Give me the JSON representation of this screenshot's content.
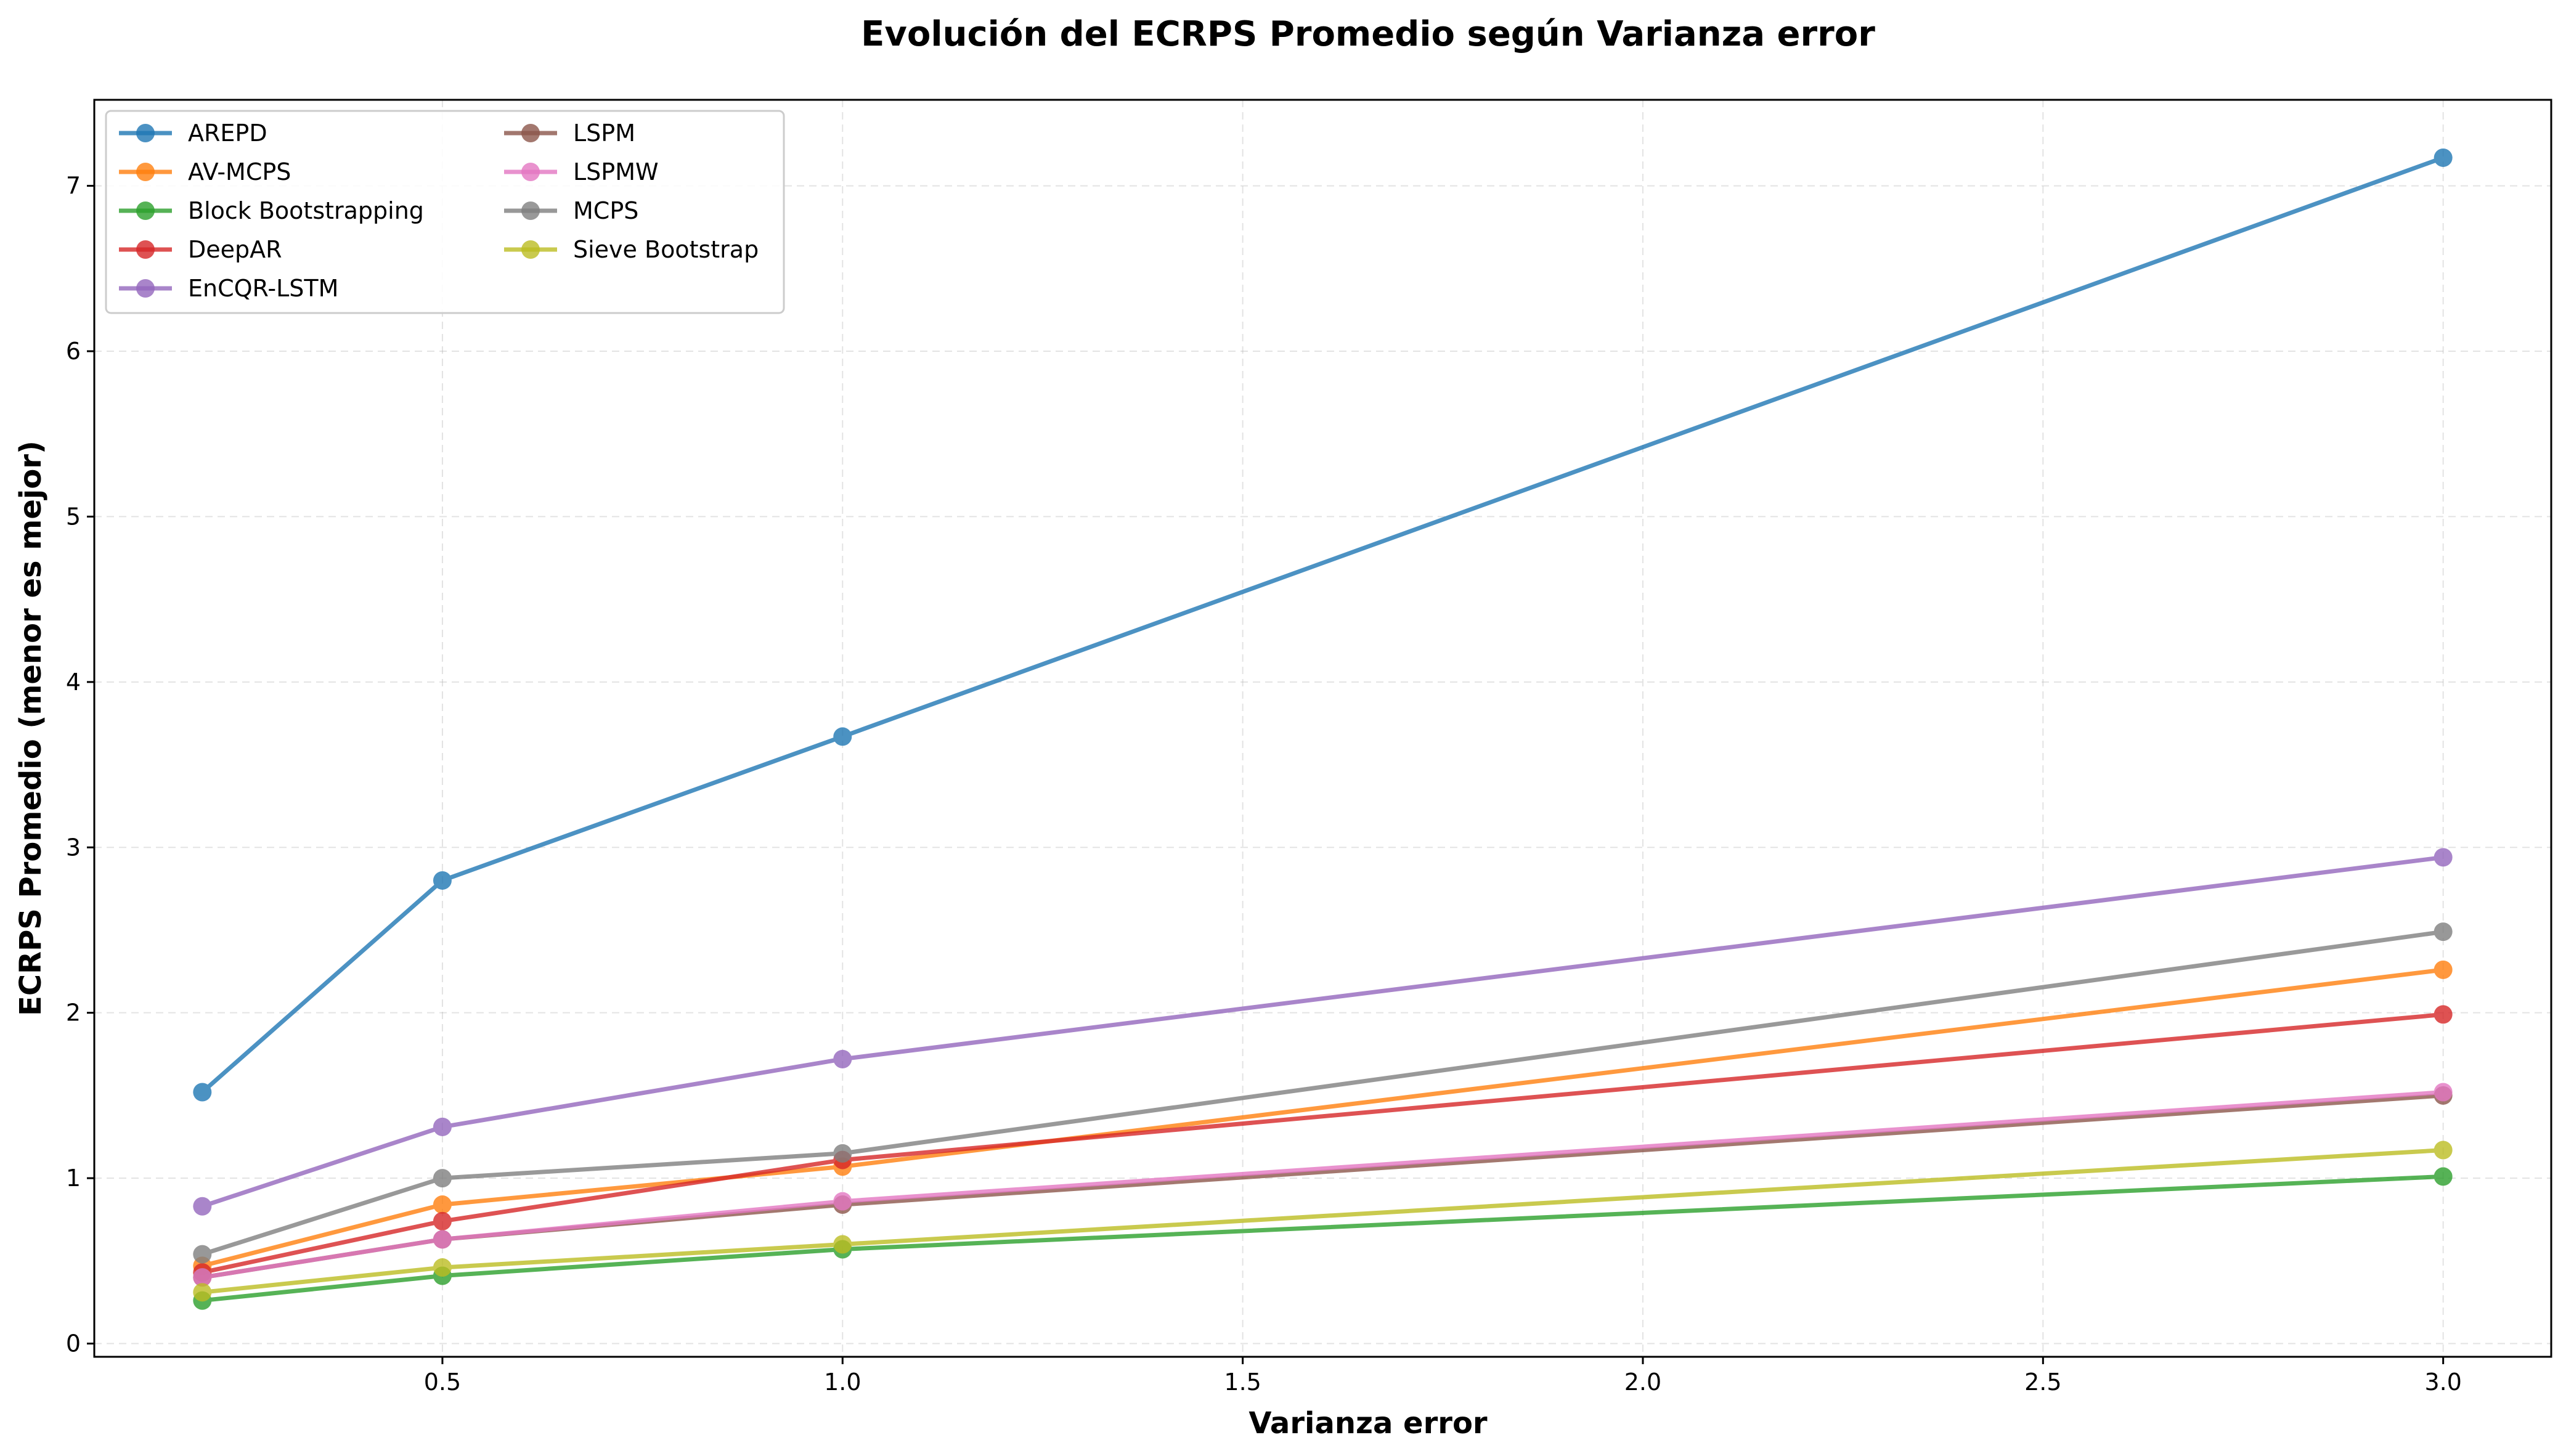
{
  "chart_data": {
    "type": "line",
    "title": "Evolución del ECRPS Promedio según Varianza error",
    "xlabel": "Varianza error",
    "ylabel": "ECRPS Promedio (menor es mejor)",
    "x": [
      0.2,
      0.5,
      1.0,
      3.0
    ],
    "xlim": [
      0.065,
      3.135
    ],
    "ylim": [
      -0.08,
      7.52
    ],
    "xticks": [
      0.5,
      1.0,
      1.5,
      2.0,
      2.5,
      3.0
    ],
    "xtick_labels": [
      "0.5",
      "1.0",
      "1.5",
      "2.0",
      "2.5",
      "3.0"
    ],
    "yticks": [
      0,
      1,
      2,
      3,
      4,
      5,
      6,
      7
    ],
    "ytick_labels": [
      "0",
      "1",
      "2",
      "3",
      "4",
      "5",
      "6",
      "7"
    ],
    "grid": true,
    "legend_position": "top-left",
    "series": [
      {
        "name": "AREPD",
        "color": "#1f77b4",
        "values": [
          1.52,
          2.8,
          3.67,
          7.17
        ]
      },
      {
        "name": "AV-MCPS",
        "color": "#ff7f0e",
        "values": [
          0.47,
          0.84,
          1.07,
          2.26
        ]
      },
      {
        "name": "Block Bootstrapping",
        "color": "#2ca02c",
        "values": [
          0.26,
          0.41,
          0.57,
          1.01
        ]
      },
      {
        "name": "DeepAR",
        "color": "#d62728",
        "values": [
          0.43,
          0.74,
          1.11,
          1.99
        ]
      },
      {
        "name": "EnCQR-LSTM",
        "color": "#9467bd",
        "values": [
          0.83,
          1.31,
          1.72,
          2.94
        ]
      },
      {
        "name": "LSPM",
        "color": "#8c564b",
        "values": [
          0.4,
          0.63,
          0.84,
          1.5
        ]
      },
      {
        "name": "LSPMW",
        "color": "#e377c2",
        "values": [
          0.4,
          0.63,
          0.86,
          1.52
        ]
      },
      {
        "name": "MCPS",
        "color": "#7f7f7f",
        "values": [
          0.54,
          1.0,
          1.15,
          2.49
        ]
      },
      {
        "name": "Sieve Bootstrap",
        "color": "#bcbd22",
        "values": [
          0.31,
          0.46,
          0.6,
          1.17
        ]
      }
    ]
  }
}
